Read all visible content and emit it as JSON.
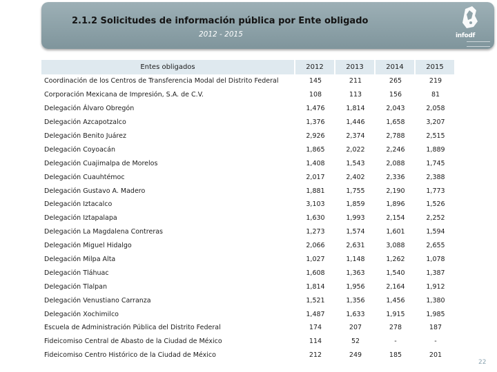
{
  "header": {
    "title": "2.1.2 Solicitudes de información pública por Ente obligado",
    "subtitle": "2012 - 2015",
    "logo_text": "infodf",
    "logo_icon": "city-seal-icon"
  },
  "table": {
    "columns": [
      "Entes obligados",
      "2012",
      "2013",
      "2014",
      "2015"
    ],
    "rows": [
      {
        "entity": "Coordinación de los Centros de Transferencia Modal del Distrito Federal",
        "values": [
          "145",
          "211",
          "265",
          "219"
        ]
      },
      {
        "entity": "Corporación Mexicana de Impresión, S.A. de C.V.",
        "values": [
          "108",
          "113",
          "156",
          "81"
        ]
      },
      {
        "entity": "Delegación Álvaro Obregón",
        "values": [
          "1,476",
          "1,814",
          "2,043",
          "2,058"
        ]
      },
      {
        "entity": "Delegación Azcapotzalco",
        "values": [
          "1,376",
          "1,446",
          "1,658",
          "3,207"
        ]
      },
      {
        "entity": "Delegación Benito Juárez",
        "values": [
          "2,926",
          "2,374",
          "2,788",
          "2,515"
        ]
      },
      {
        "entity": "Delegación Coyoacán",
        "values": [
          "1,865",
          "2,022",
          "2,246",
          "1,889"
        ]
      },
      {
        "entity": "Delegación Cuajimalpa de Morelos",
        "values": [
          "1,408",
          "1,543",
          "2,088",
          "1,745"
        ]
      },
      {
        "entity": "Delegación Cuauhtémoc",
        "values": [
          "2,017",
          "2,402",
          "2,336",
          "2,388"
        ]
      },
      {
        "entity": "Delegación Gustavo A. Madero",
        "values": [
          "1,881",
          "1,755",
          "2,190",
          "1,773"
        ]
      },
      {
        "entity": "Delegación Iztacalco",
        "values": [
          "3,103",
          "1,859",
          "1,896",
          "1,526"
        ]
      },
      {
        "entity": "Delegación Iztapalapa",
        "values": [
          "1,630",
          "1,993",
          "2,154",
          "2,252"
        ]
      },
      {
        "entity": "Delegación La Magdalena Contreras",
        "values": [
          "1,273",
          "1,574",
          "1,601",
          "1,594"
        ]
      },
      {
        "entity": "Delegación Miguel Hidalgo",
        "values": [
          "2,066",
          "2,631",
          "3,088",
          "2,655"
        ]
      },
      {
        "entity": "Delegación Milpa Alta",
        "values": [
          "1,027",
          "1,148",
          "1,262",
          "1,078"
        ]
      },
      {
        "entity": "Delegación Tláhuac",
        "values": [
          "1,608",
          "1,363",
          "1,540",
          "1,387"
        ]
      },
      {
        "entity": "Delegación Tlalpan",
        "values": [
          "1,814",
          "1,956",
          "2,164",
          "1,912"
        ]
      },
      {
        "entity": "Delegación Venustiano Carranza",
        "values": [
          "1,521",
          "1,356",
          "1,456",
          "1,380"
        ]
      },
      {
        "entity": "Delegación Xochimilco",
        "values": [
          "1,487",
          "1,633",
          "1,915",
          "1,985"
        ]
      },
      {
        "entity": "Escuela de Administración Pública del Distrito Federal",
        "values": [
          "174",
          "207",
          "278",
          "187"
        ]
      },
      {
        "entity": "Fideicomiso Central de Abasto de la Ciudad de México",
        "values": [
          "114",
          "52",
          "-",
          "-"
        ]
      },
      {
        "entity": "Fideicomiso Centro Histórico de la Ciudad de México",
        "values": [
          "212",
          "249",
          "185",
          "201"
        ]
      }
    ]
  },
  "page_number": "22",
  "colors": {
    "header_bg": "#8fa3a9",
    "table_header_bg": "#dfe9ef",
    "row_shade": "#dfe9ef"
  }
}
